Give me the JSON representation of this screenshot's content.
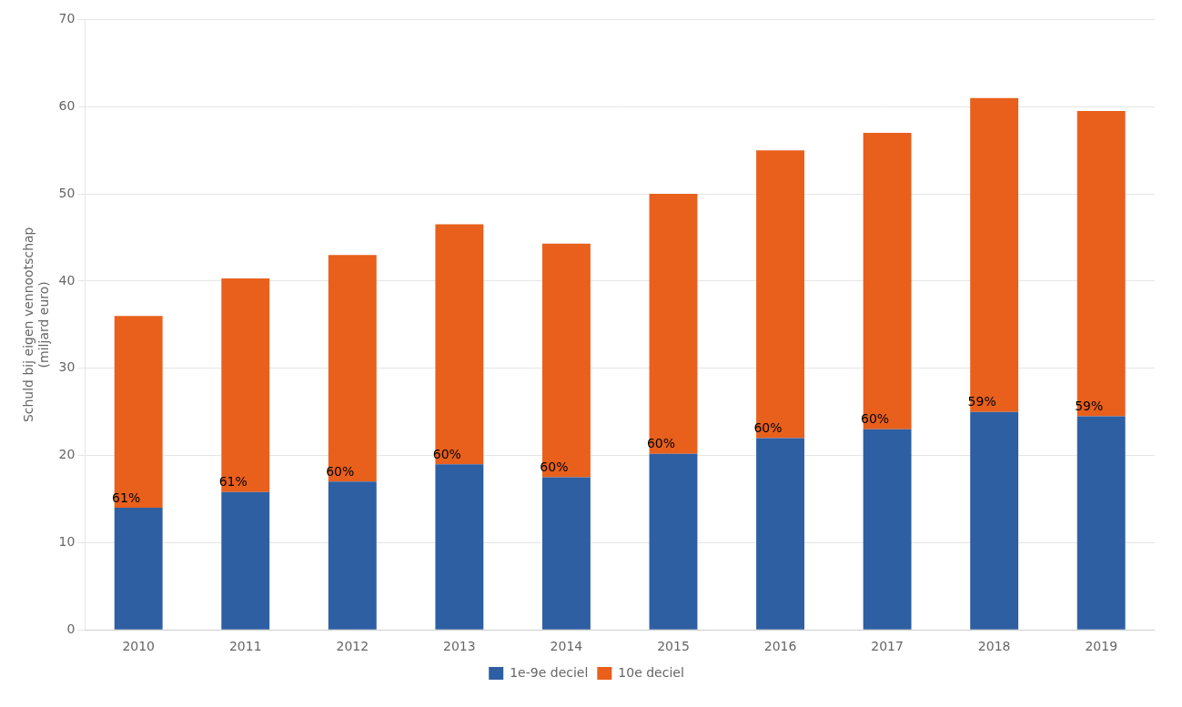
{
  "chart_data": {
    "type": "bar",
    "stacked": true,
    "categories": [
      "2010",
      "2011",
      "2012",
      "2013",
      "2014",
      "2015",
      "2016",
      "2017",
      "2018",
      "2019"
    ],
    "series": [
      {
        "name": "1e-9e deciel",
        "color": "#2E5FA3",
        "values": [
          14.0,
          15.8,
          17.0,
          19.0,
          17.5,
          20.2,
          22.0,
          23.0,
          25.0,
          24.5
        ]
      },
      {
        "name": "10e deciel",
        "color": "#E8601C",
        "values": [
          22.0,
          24.5,
          26.0,
          27.5,
          26.8,
          29.8,
          33.0,
          34.0,
          36.0,
          35.0
        ]
      }
    ],
    "annotations": [
      "61%",
      "61%",
      "60%",
      "60%",
      "60%",
      "60%",
      "60%",
      "60%",
      "59%",
      "59%"
    ],
    "ylabel": [
      "Schuld bij eigen vennootschap",
      "(miljard euro)"
    ],
    "ylim": [
      0,
      70
    ],
    "yticks": [
      0,
      10,
      20,
      30,
      40,
      50,
      60,
      70
    ],
    "grid": true,
    "legend": "bottom"
  }
}
